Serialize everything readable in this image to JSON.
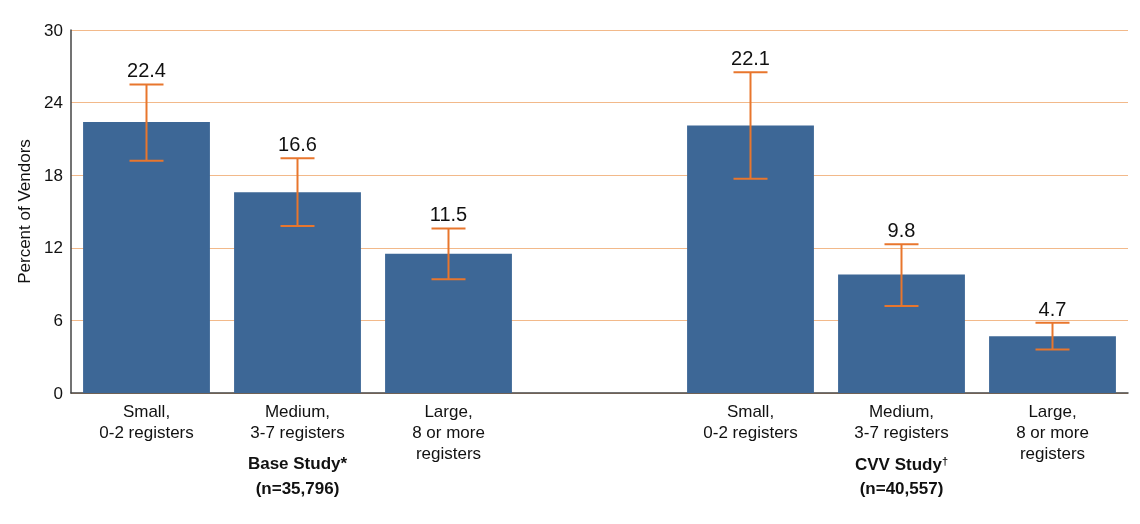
{
  "chart_data": {
    "type": "bar",
    "ylabel": "Percent of Vendors",
    "categories": [
      "Small,\n0-2 registers",
      "Medium,\n3-7 registers",
      "Large,\n8 or more\nregisters",
      null,
      "Small,\n0-2 registers",
      "Medium,\n3-7 registers",
      "Large,\n8 or more\nregisters"
    ],
    "values": [
      22.4,
      16.6,
      11.5,
      null,
      22.1,
      9.8,
      4.7
    ],
    "errors": [
      [
        19.2,
        25.5
      ],
      [
        13.8,
        19.4
      ],
      [
        9.4,
        13.6
      ],
      null,
      [
        17.7,
        26.5
      ],
      [
        7.2,
        12.3
      ],
      [
        3.6,
        5.8
      ]
    ],
    "color": "#3d6796",
    "data_labels": true,
    "annotations": [
      "Base Study*\n(n=35,796)",
      "CVV Study$^{†}$\n(n=40,557)"
    ],
    "ylim": [
      0,
      30
    ],
    "yticks": [
      0,
      6,
      12,
      18,
      24,
      30
    ],
    "grid": "y"
  }
}
